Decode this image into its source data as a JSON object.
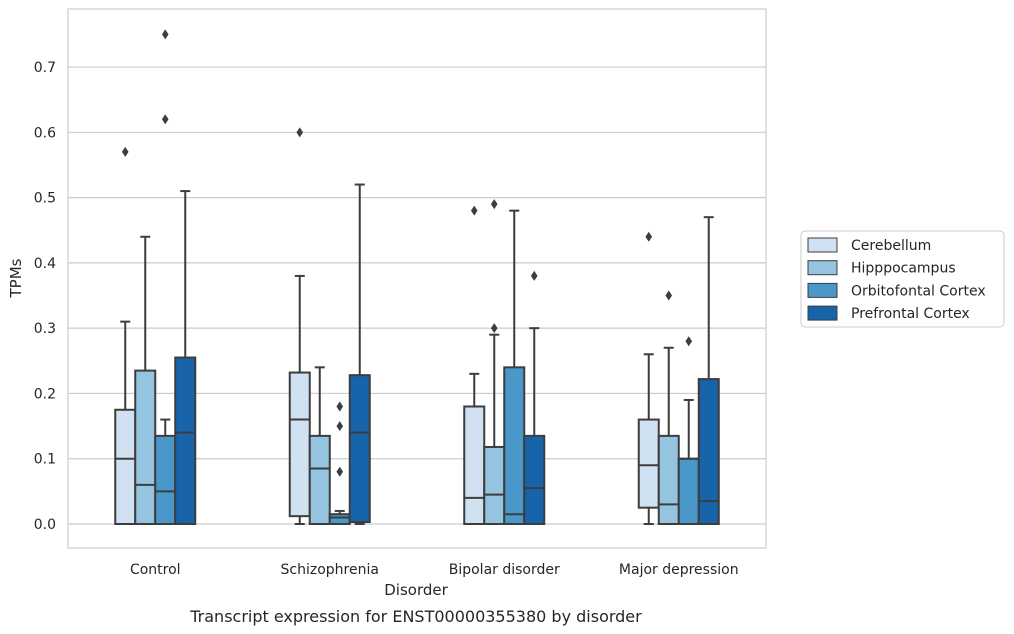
{
  "chart_data": {
    "type": "box",
    "xlabel": "Disorder",
    "ylabel": "TPMs",
    "caption": "Transcript expression for ENST00000355380 by disorder",
    "categories": [
      "Control",
      "Schizophrenia",
      "Bipolar disorder",
      "Major depression"
    ],
    "ylim": [
      -0.037,
      0.805
    ],
    "yticks": [
      0.0,
      0.1,
      0.2,
      0.3,
      0.4,
      0.5,
      0.6,
      0.7
    ],
    "ytick_labels": [
      "0.0",
      "0.1",
      "0.2",
      "0.3",
      "0.4",
      "0.5",
      "0.6",
      "0.7"
    ],
    "grid": true,
    "legend_placement": "right",
    "series": [
      {
        "name": "Cerebellum",
        "color": "#d0e1f2",
        "boxes": [
          {
            "whisker_low": 0.0,
            "q1": 0.0,
            "median": 0.1,
            "q3": 0.175,
            "whisker_high": 0.31,
            "outliers": [
              0.57
            ]
          },
          {
            "whisker_low": 0.0,
            "q1": 0.012,
            "median": 0.16,
            "q3": 0.232,
            "whisker_high": 0.38,
            "outliers": [
              0.6
            ]
          },
          {
            "whisker_low": 0.0,
            "q1": 0.0,
            "median": 0.04,
            "q3": 0.18,
            "whisker_high": 0.23,
            "outliers": [
              0.48
            ]
          },
          {
            "whisker_low": 0.0,
            "q1": 0.025,
            "median": 0.09,
            "q3": 0.16,
            "whisker_high": 0.26,
            "outliers": [
              0.44
            ]
          }
        ]
      },
      {
        "name": "Hipppocampus",
        "color": "#94c4df",
        "boxes": [
          {
            "whisker_low": 0.0,
            "q1": 0.0,
            "median": 0.06,
            "q3": 0.235,
            "whisker_high": 0.44,
            "outliers": []
          },
          {
            "whisker_low": 0.0,
            "q1": 0.0,
            "median": 0.085,
            "q3": 0.135,
            "whisker_high": 0.24,
            "outliers": []
          },
          {
            "whisker_low": 0.0,
            "q1": 0.0,
            "median": 0.045,
            "q3": 0.118,
            "whisker_high": 0.29,
            "outliers": [
              0.3,
              0.49
            ]
          },
          {
            "whisker_low": 0.0,
            "q1": 0.0,
            "median": 0.03,
            "q3": 0.135,
            "whisker_high": 0.27,
            "outliers": [
              0.35
            ]
          }
        ]
      },
      {
        "name": "Orbitofontal Cortex",
        "color": "#4a98c9",
        "boxes": [
          {
            "whisker_low": 0.0,
            "q1": 0.0,
            "median": 0.05,
            "q3": 0.135,
            "whisker_high": 0.16,
            "outliers": [
              0.62,
              0.75
            ]
          },
          {
            "whisker_low": 0.0,
            "q1": 0.0,
            "median": 0.01,
            "q3": 0.015,
            "whisker_high": 0.02,
            "outliers": [
              0.08,
              0.15,
              0.18
            ]
          },
          {
            "whisker_low": 0.0,
            "q1": 0.0,
            "median": 0.015,
            "q3": 0.24,
            "whisker_high": 0.48,
            "outliers": []
          },
          {
            "whisker_low": 0.0,
            "q1": 0.0,
            "median": 0.1,
            "q3": 0.1,
            "whisker_high": 0.19,
            "outliers": [
              0.28
            ]
          }
        ]
      },
      {
        "name": "Prefrontal Cortex",
        "color": "#1764ab",
        "boxes": [
          {
            "whisker_low": 0.0,
            "q1": 0.0,
            "median": 0.14,
            "q3": 0.255,
            "whisker_high": 0.51,
            "outliers": []
          },
          {
            "whisker_low": 0.0,
            "q1": 0.003,
            "median": 0.14,
            "q3": 0.228,
            "whisker_high": 0.52,
            "outliers": []
          },
          {
            "whisker_low": 0.0,
            "q1": 0.0,
            "median": 0.055,
            "q3": 0.135,
            "whisker_high": 0.3,
            "outliers": [
              0.38
            ]
          },
          {
            "whisker_low": 0.0,
            "q1": 0.0,
            "median": 0.035,
            "q3": 0.222,
            "whisker_high": 0.47,
            "outliers": []
          }
        ]
      }
    ]
  }
}
